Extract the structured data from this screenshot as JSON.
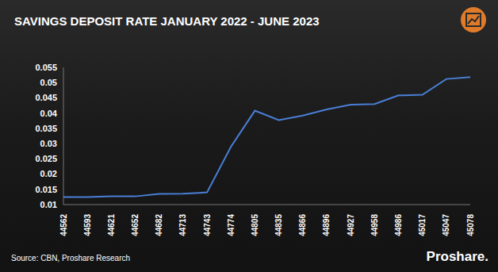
{
  "chart_data": {
    "type": "line",
    "title": "SAVINGS DEPOSIT RATE JANUARY 2022 - JUNE 2023",
    "annotations": [
      "Source: CBN, Proshare Research",
      "Proshare."
    ],
    "categories": [
      "44562",
      "44593",
      "44621",
      "44652",
      "44682",
      "44713",
      "44743",
      "44774",
      "44805",
      "44835",
      "44866",
      "44896",
      "44927",
      "44958",
      "44986",
      "45017",
      "45047",
      "45078"
    ],
    "values": [
      0.0125,
      0.0125,
      0.0127,
      0.0127,
      0.0135,
      0.0136,
      0.014,
      0.029,
      0.0408,
      0.0377,
      0.0392,
      0.0412,
      0.0428,
      0.043,
      0.0458,
      0.046,
      0.0512,
      0.0518
    ],
    "color": "#4a7fd6",
    "marker": "none",
    "ylim": [
      0.01,
      0.055
    ],
    "yticks": [
      0.01,
      0.015,
      0.02,
      0.025,
      0.03,
      0.035,
      0.04,
      0.045,
      0.05,
      0.055
    ],
    "grid": false
  }
}
